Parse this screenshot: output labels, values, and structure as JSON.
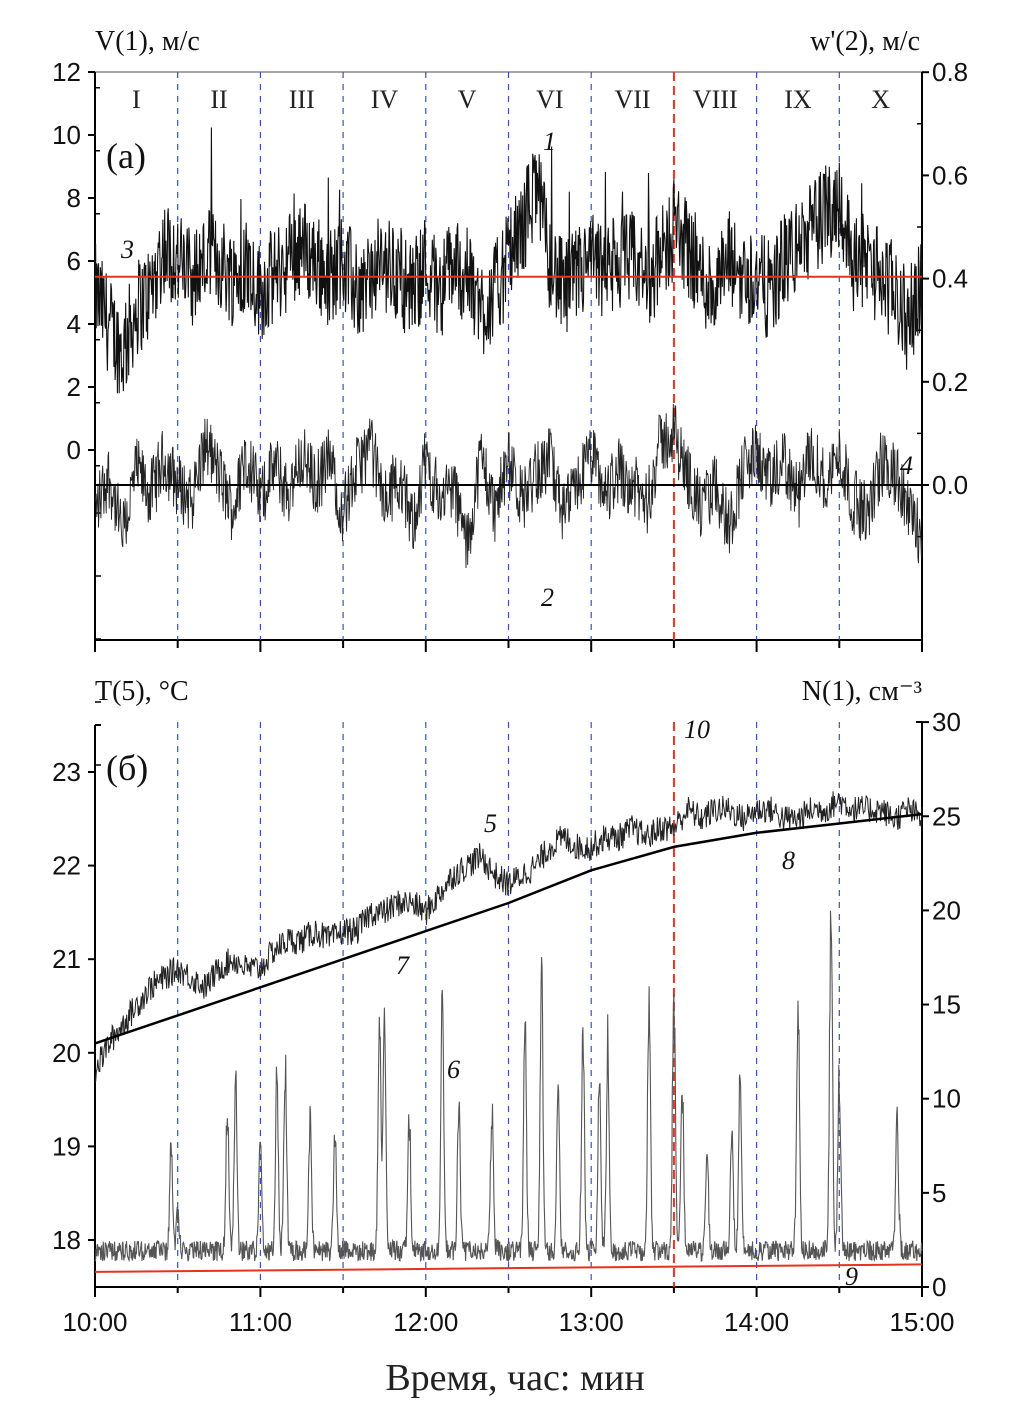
{
  "chart_data": [
    {
      "type": "line",
      "panel_label": "(a)",
      "left_axis_label": "V(1), м/с",
      "right_axis_label": "w'(2), м/с",
      "x_ticks": [
        "10:00",
        "11:00",
        "12:00",
        "13:00",
        "14:00",
        "15:00"
      ],
      "xlim_hours": [
        10,
        15
      ],
      "left_ylim": [
        -6,
        12
      ],
      "left_ticks": [
        12,
        10,
        8,
        6,
        4,
        2,
        0
      ],
      "right_ylim": [
        -0.3,
        0.8
      ],
      "right_ticks": [
        "0.8",
        "0.6",
        "0.4",
        "0.2",
        "0.0"
      ],
      "intervals": [
        "I",
        "II",
        "III",
        "IV",
        "V",
        "VI",
        "VII",
        "VIII",
        "IX",
        "X"
      ],
      "divider_times_hours": [
        10.5,
        11,
        11.5,
        12,
        12.5,
        13,
        13.5,
        14,
        14.5
      ],
      "highlight_time_hours": 13.5,
      "sample_step_minutes": 5,
      "series": [
        {
          "name": "V (1)",
          "axis": "left",
          "label": "1",
          "values": [
            5,
            4,
            3,
            4.5,
            5,
            6.5,
            6,
            5.5,
            6,
            6,
            5.5,
            6,
            5,
            5.5,
            6,
            6.5,
            6,
            5.5,
            6,
            5,
            5.5,
            6,
            5.5,
            5,
            6,
            5,
            6,
            5.5,
            4.5,
            5,
            6,
            7,
            8.5,
            6,
            5,
            5.5,
            6,
            5.5,
            6,
            6,
            5.5,
            6,
            7,
            6.5,
            5.5,
            5,
            6,
            5.5,
            5.5,
            5,
            6,
            6.5,
            7,
            7.5,
            8,
            6,
            6,
            5.5,
            5,
            4,
            5.5
          ]
        },
        {
          "name": "w' (2)",
          "axis": "right",
          "label": "2",
          "values": [
            -0.05,
            0.02,
            -0.1,
            0.03,
            -0.02,
            0.05,
            0.0,
            -0.03,
            0.08,
            0.02,
            -0.05,
            0.06,
            -0.03,
            0.04,
            -0.02,
            0.06,
            0.0,
            0.05,
            -0.05,
            0.03,
            0.08,
            -0.04,
            0.02,
            -0.08,
            0.05,
            -0.03,
            0.0,
            -0.12,
            0.06,
            -0.05,
            0.04,
            -0.03,
            0.02,
            0.05,
            -0.06,
            0.0,
            0.06,
            -0.02,
            0.03,
            0.0,
            -0.04,
            0.08,
            0.1,
            0.02,
            -0.05,
            0.0,
            -0.08,
            0.03,
            0.06,
            0.0,
            0.05,
            -0.03,
            0.07,
            0.0,
            0.06,
            -0.03,
            -0.06,
            0.04,
            0.02,
            -0.05,
            -0.1
          ]
        },
        {
          "name": "mean V (3)",
          "axis": "left",
          "label": "3",
          "constant": 5.5,
          "color": "#e8321e"
        },
        {
          "name": "zero w' (4)",
          "axis": "right",
          "label": "4",
          "constant": 0.0,
          "color": "#000000"
        }
      ]
    },
    {
      "type": "line",
      "panel_label": "(б)",
      "left_axis_label": "T(5), °C",
      "right_axis_label": "N(1), см⁻³",
      "x_ticks": [
        "10:00",
        "11:00",
        "12:00",
        "13:00",
        "14:00",
        "15:00"
      ],
      "xlabel": "Время, час: мин",
      "left_ylim": [
        17.5,
        23.5
      ],
      "left_ticks": [
        23,
        22,
        21,
        20,
        19,
        18
      ],
      "right_ylim": [
        0,
        30
      ],
      "right_ticks": [
        30,
        25,
        20,
        15,
        10,
        5,
        0
      ],
      "highlight_label": "10",
      "series": [
        {
          "name": "T (5)",
          "axis": "left",
          "label": "5",
          "sample_step_minutes": 5,
          "values": [
            19.8,
            20.1,
            20.3,
            20.5,
            20.7,
            20.8,
            20.9,
            20.8,
            20.7,
            20.9,
            21.0,
            20.9,
            20.9,
            21.1,
            21.2,
            21.2,
            21.3,
            21.2,
            21.3,
            21.3,
            21.5,
            21.5,
            21.6,
            21.6,
            21.5,
            21.7,
            21.9,
            22.0,
            22.1,
            21.9,
            21.8,
            21.9,
            22.0,
            22.2,
            22.3,
            22.2,
            22.2,
            22.3,
            22.3,
            22.4,
            22.3,
            22.4,
            22.4,
            22.6,
            22.5,
            22.6,
            22.6,
            22.5,
            22.6,
            22.6,
            22.5,
            22.5,
            22.6,
            22.6,
            22.7,
            22.6,
            22.6,
            22.6,
            22.5,
            22.6,
            22.5
          ]
        },
        {
          "name": "T trend (7, 8)",
          "axis": "left",
          "labels": [
            "7",
            "8"
          ],
          "sample_step_minutes": 30,
          "values": [
            20.1,
            20.4,
            20.7,
            21.0,
            21.3,
            21.6,
            21.95,
            22.2,
            22.35,
            22.45,
            22.55
          ]
        },
        {
          "name": "N (6)",
          "axis": "right",
          "label": "6",
          "baseline": 1.7,
          "peaks": [
            [
              10.46,
              8
            ],
            [
              10.5,
              4
            ],
            [
              10.8,
              10
            ],
            [
              10.85,
              12
            ],
            [
              11.0,
              9
            ],
            [
              11.1,
              12
            ],
            [
              11.15,
              13
            ],
            [
              11.3,
              10
            ],
            [
              11.45,
              9
            ],
            [
              11.72,
              15
            ],
            [
              11.75,
              16
            ],
            [
              11.9,
              10
            ],
            [
              12.1,
              17
            ],
            [
              12.2,
              11
            ],
            [
              12.4,
              11
            ],
            [
              12.6,
              16
            ],
            [
              12.7,
              18
            ],
            [
              12.8,
              12
            ],
            [
              12.95,
              15
            ],
            [
              13.05,
              12
            ],
            [
              13.1,
              14
            ],
            [
              13.35,
              17
            ],
            [
              13.5,
              17
            ],
            [
              13.55,
              12
            ],
            [
              13.7,
              8
            ],
            [
              13.85,
              9
            ],
            [
              13.9,
              12
            ],
            [
              14.25,
              17
            ],
            [
              14.45,
              24
            ],
            [
              14.5,
              12
            ],
            [
              14.85,
              10
            ]
          ]
        },
        {
          "name": "N background (9)",
          "axis": "right",
          "label": "9",
          "values": [
            0.8,
            1.2
          ],
          "color": "#e8321e"
        }
      ]
    }
  ],
  "colors": {
    "divider": "#3a4fc0",
    "highlight": "#e8321e",
    "trace": "#111111",
    "n_trace": "#555555"
  }
}
